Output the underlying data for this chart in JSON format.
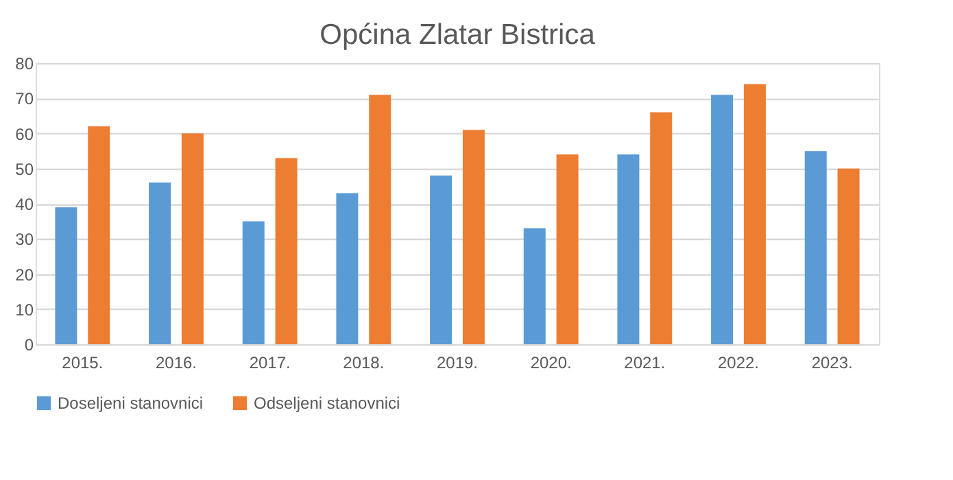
{
  "chart_data": {
    "type": "bar",
    "title": "Općina Zlatar Bistrica",
    "categories": [
      "2015.",
      "2016.",
      "2017.",
      "2018.",
      "2019.",
      "2020.",
      "2021.",
      "2022.",
      "2023."
    ],
    "series": [
      {
        "name": "Doseljeni stanovnici",
        "color": "#5b9bd5",
        "values": [
          39,
          46,
          35,
          43,
          48,
          33,
          54,
          71,
          55
        ]
      },
      {
        "name": "Odseljeni stanovnici",
        "color": "#ed7d31",
        "values": [
          62,
          60,
          53,
          71,
          61,
          54,
          66,
          74,
          50
        ]
      }
    ],
    "ylim": [
      0,
      80
    ],
    "yticks": [
      0,
      10,
      20,
      30,
      40,
      50,
      60,
      70,
      80
    ],
    "grid": "y",
    "legend": "bottom"
  }
}
